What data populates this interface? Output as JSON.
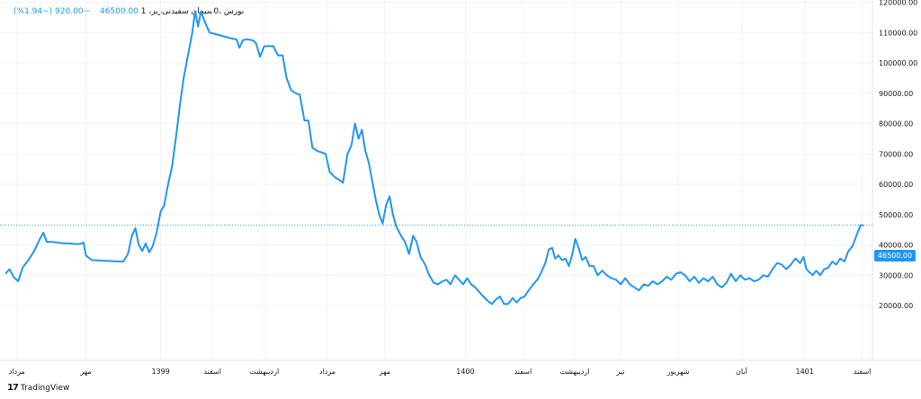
{
  "header": {
    "symbol_title": "بورس ،0سیمان سفیدنی‌ریز، 1",
    "last_price": "46500.00",
    "change": "−920.00 (−1.94%)"
  },
  "branding": {
    "name": "TradingView",
    "logo_text": "17"
  },
  "last_price_tag": "46500.00",
  "colors": {
    "line": "#2196f3",
    "grid": "#f0f3fa",
    "axis_text": "#131722",
    "background": "#ffffff"
  },
  "chart_data": {
    "type": "line",
    "title": "",
    "xlabel": "",
    "ylabel": "",
    "ylim": [
      10000,
      125000
    ],
    "y_ticks": [
      20000,
      30000,
      40000,
      50000,
      60000,
      70000,
      80000,
      90000,
      100000,
      110000,
      120000
    ],
    "y_tick_labels": [
      "20000.00",
      "30000.00",
      "40000.00",
      "50000.00",
      "60000.00",
      "70000.00",
      "80000.00",
      "90000.00",
      "100000.00",
      "110000.00",
      "120000.00"
    ],
    "x_ticks": [
      {
        "label": "مرداد",
        "x": 2
      },
      {
        "label": "مهر",
        "x": 14
      },
      {
        "label": "1399",
        "x": 27
      },
      {
        "label": "اسفند",
        "x": 36
      },
      {
        "label": "اردیبهشت",
        "x": 45
      },
      {
        "label": "مرداد",
        "x": 56
      },
      {
        "label": "مهر",
        "x": 66
      },
      {
        "label": "1400",
        "x": 80
      },
      {
        "label": "اسفند",
        "x": 90
      },
      {
        "label": "اردیبهشت",
        "x": 99
      },
      {
        "label": "تیر",
        "x": 107
      },
      {
        "label": "شهریور",
        "x": 117
      },
      {
        "label": "آبان",
        "x": 128
      },
      {
        "label": "1401",
        "x": 139
      },
      {
        "label": "اسفند",
        "x": 149
      }
    ],
    "last_value": 46500,
    "series": [
      {
        "values": [
          [
            0,
            30500
          ],
          [
            0.7,
            32000
          ],
          [
            1.4,
            29500
          ],
          [
            2.2,
            28000
          ],
          [
            3,
            32500
          ],
          [
            4,
            35000
          ],
          [
            5,
            38000
          ],
          [
            6,
            42000
          ],
          [
            6.6,
            44000
          ],
          [
            7.2,
            41000
          ],
          [
            8,
            41000
          ],
          [
            9,
            40800
          ],
          [
            10,
            40500
          ],
          [
            11,
            40500
          ],
          [
            12,
            40300
          ],
          [
            13,
            40300
          ],
          [
            13.6,
            40800
          ],
          [
            14,
            36500
          ],
          [
            15,
            35000
          ],
          [
            17,
            34800
          ],
          [
            19,
            34600
          ],
          [
            20.5,
            34500
          ],
          [
            21.3,
            37000
          ],
          [
            22,
            43000
          ],
          [
            22.6,
            45500
          ],
          [
            23.2,
            40000
          ],
          [
            23.8,
            38000
          ],
          [
            24.4,
            40500
          ],
          [
            25,
            37500
          ],
          [
            25.6,
            39500
          ],
          [
            26.3,
            44000
          ],
          [
            27,
            51000
          ],
          [
            27.6,
            53000
          ],
          [
            28.3,
            60000
          ],
          [
            29,
            66000
          ],
          [
            29.7,
            76000
          ],
          [
            30.4,
            87000
          ],
          [
            31,
            95000
          ],
          [
            31.8,
            103000
          ],
          [
            32.5,
            110000
          ],
          [
            33,
            117000
          ],
          [
            33.5,
            112000
          ],
          [
            34,
            117000
          ],
          [
            34.8,
            113000
          ],
          [
            35.5,
            110000
          ],
          [
            36.5,
            109500
          ],
          [
            37.5,
            109000
          ],
          [
            38.5,
            108500
          ],
          [
            39.5,
            108000
          ],
          [
            40.2,
            107800
          ],
          [
            40.7,
            105000
          ],
          [
            41.3,
            107500
          ],
          [
            42,
            107800
          ],
          [
            43,
            107500
          ],
          [
            43.6,
            106500
          ],
          [
            44.3,
            102000
          ],
          [
            45,
            105500
          ],
          [
            46,
            105500
          ],
          [
            46.6,
            105500
          ],
          [
            47.4,
            102500
          ],
          [
            48.2,
            102500
          ],
          [
            48.9,
            95000
          ],
          [
            49.7,
            91000
          ],
          [
            50.5,
            90000
          ],
          [
            51.2,
            89500
          ],
          [
            52,
            81000
          ],
          [
            52.7,
            81000
          ],
          [
            53.4,
            72000
          ],
          [
            54.2,
            71000
          ],
          [
            55,
            70500
          ],
          [
            55.7,
            70000
          ],
          [
            56.4,
            64000
          ],
          [
            57.2,
            62500
          ],
          [
            58,
            61500
          ],
          [
            58.7,
            60500
          ],
          [
            59.5,
            70000
          ],
          [
            60.2,
            73000
          ],
          [
            60.8,
            80000
          ],
          [
            61.4,
            75000
          ],
          [
            62,
            78000
          ],
          [
            62.6,
            71000
          ],
          [
            63.2,
            67000
          ],
          [
            63.8,
            61000
          ],
          [
            64.4,
            55000
          ],
          [
            65,
            50000
          ],
          [
            65.6,
            47000
          ],
          [
            66.2,
            53000
          ],
          [
            66.8,
            56000
          ],
          [
            67.4,
            50000
          ],
          [
            68,
            46000
          ],
          [
            68.8,
            43000
          ],
          [
            69.5,
            41000
          ],
          [
            70.2,
            37000
          ],
          [
            70.9,
            43000
          ],
          [
            71.5,
            41000
          ],
          [
            72.2,
            36000
          ],
          [
            73,
            33500
          ],
          [
            73.7,
            30000
          ],
          [
            74.5,
            27500
          ],
          [
            75.2,
            27000
          ],
          [
            76,
            28000
          ],
          [
            76.7,
            28500
          ],
          [
            77.4,
            27000
          ],
          [
            78.2,
            30000
          ],
          [
            78.9,
            28500
          ],
          [
            79.6,
            27000
          ],
          [
            80.3,
            29000
          ],
          [
            81,
            27000
          ],
          [
            81.7,
            26000
          ],
          [
            82.4,
            24500
          ],
          [
            83.1,
            23000
          ],
          [
            83.9,
            21500
          ],
          [
            84.6,
            20500
          ],
          [
            85.3,
            22000
          ],
          [
            86,
            23000
          ],
          [
            86.7,
            20500
          ],
          [
            87.4,
            20500
          ],
          [
            88.2,
            22500
          ],
          [
            88.9,
            21000
          ],
          [
            89.6,
            22500
          ],
          [
            90.3,
            23000
          ],
          [
            91,
            25000
          ],
          [
            91.8,
            27000
          ],
          [
            92.5,
            28500
          ],
          [
            93.2,
            31000
          ],
          [
            93.9,
            34000
          ],
          [
            94.5,
            38500
          ],
          [
            95.1,
            39000
          ],
          [
            95.6,
            35500
          ],
          [
            96.2,
            36500
          ],
          [
            96.8,
            35000
          ],
          [
            97.4,
            35500
          ],
          [
            98,
            33000
          ],
          [
            98.6,
            37000
          ],
          [
            99.1,
            42000
          ],
          [
            99.7,
            39000
          ],
          [
            100.3,
            35000
          ],
          [
            100.9,
            36000
          ],
          [
            101.6,
            33000
          ],
          [
            102.3,
            33000
          ],
          [
            103,
            30000
          ],
          [
            103.8,
            31500
          ],
          [
            104.6,
            30000
          ],
          [
            105.4,
            29000
          ],
          [
            106.2,
            28500
          ],
          [
            107,
            27000
          ],
          [
            107.8,
            29000
          ],
          [
            108.6,
            27000
          ],
          [
            109.4,
            26000
          ],
          [
            110.2,
            25000
          ],
          [
            111,
            27000
          ],
          [
            111.8,
            26500
          ],
          [
            112.6,
            28000
          ],
          [
            113.4,
            27000
          ],
          [
            114.2,
            28000
          ],
          [
            115,
            29500
          ],
          [
            115.8,
            28500
          ],
          [
            116.6,
            30500
          ],
          [
            117.4,
            31000
          ],
          [
            118.2,
            30000
          ],
          [
            119,
            28000
          ],
          [
            119.8,
            29500
          ],
          [
            120.6,
            27500
          ],
          [
            121.4,
            29000
          ],
          [
            122.2,
            28000
          ],
          [
            123,
            29500
          ],
          [
            123.8,
            27000
          ],
          [
            124.6,
            26000
          ],
          [
            125.4,
            27500
          ],
          [
            126.2,
            30500
          ],
          [
            127,
            28000
          ],
          [
            127.8,
            30000
          ],
          [
            128.6,
            28500
          ],
          [
            129.4,
            29000
          ],
          [
            130.2,
            28000
          ],
          [
            131,
            28500
          ],
          [
            131.8,
            30000
          ],
          [
            132.6,
            29500
          ],
          [
            133.4,
            32000
          ],
          [
            134.2,
            34000
          ],
          [
            135,
            33500
          ],
          [
            135.8,
            32000
          ],
          [
            136.6,
            33500
          ],
          [
            137.4,
            35500
          ],
          [
            138.2,
            34000
          ],
          [
            138.8,
            36000
          ],
          [
            139.3,
            32000
          ],
          [
            139.8,
            31000
          ],
          [
            140.4,
            30000
          ],
          [
            141,
            31500
          ],
          [
            141.7,
            30000
          ],
          [
            142.4,
            32000
          ],
          [
            143.1,
            32500
          ],
          [
            143.8,
            34500
          ],
          [
            144.5,
            33500
          ],
          [
            145.2,
            35500
          ],
          [
            145.9,
            34500
          ],
          [
            146.6,
            38000
          ],
          [
            147.3,
            39500
          ],
          [
            148,
            43000
          ],
          [
            148.7,
            46500
          ],
          [
            149.2,
            46500
          ]
        ]
      }
    ]
  }
}
